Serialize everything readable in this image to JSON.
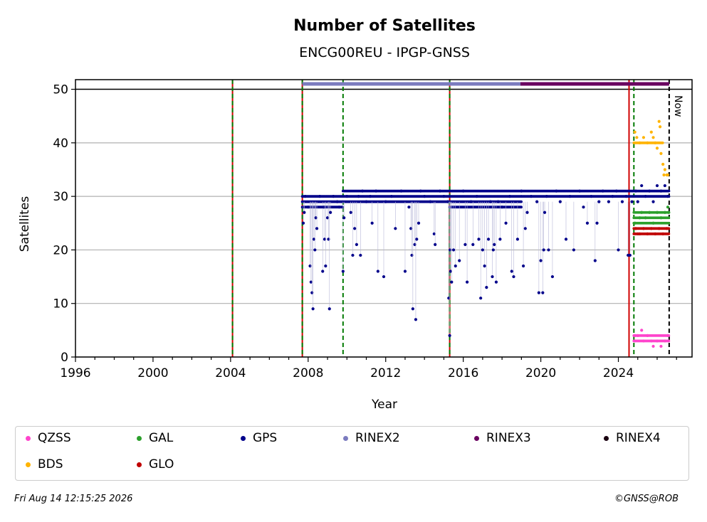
{
  "chart_data": {
    "type": "scatter",
    "title": "Number of Satellites",
    "subtitle": "ENCG00REU - IPGP-GNSS",
    "xlabel": "Year",
    "ylabel": "Satellites",
    "xlim": [
      1996,
      2027.8
    ],
    "ylim": [
      0,
      51.8
    ],
    "xticks": [
      1996,
      2000,
      2004,
      2008,
      2012,
      2016,
      2020,
      2024
    ],
    "yticks": [
      0,
      10,
      20,
      30,
      40,
      50
    ],
    "grid": "y",
    "now_label": "Now",
    "now_year": 2026.62,
    "vlines": [
      {
        "x": 2004.1,
        "style": "green-red-dotted"
      },
      {
        "x": 2007.7,
        "style": "green-red-dotted"
      },
      {
        "x": 2009.8,
        "style": "green-dashed"
      },
      {
        "x": 2015.3,
        "style": "green-red-dotted"
      },
      {
        "x": 2024.55,
        "style": "red-solid"
      },
      {
        "x": 2024.8,
        "style": "green-dashed"
      }
    ],
    "rinex_bars": [
      {
        "name": "RINEX2",
        "start": 2007.7,
        "end": 2018.95,
        "y": 51.0
      },
      {
        "name": "RINEX3",
        "start": 2018.95,
        "end": 2026.62,
        "y": 51.0
      }
    ],
    "series": [
      {
        "name": "GPS",
        "color": "#00008b",
        "points": [
          [
            2007.75,
            25
          ],
          [
            2007.8,
            27
          ],
          [
            2007.85,
            30
          ],
          [
            2008.0,
            28
          ],
          [
            2008.1,
            17
          ],
          [
            2008.15,
            14
          ],
          [
            2008.2,
            12
          ],
          [
            2008.25,
            9
          ],
          [
            2008.3,
            22
          ],
          [
            2008.35,
            20
          ],
          [
            2008.4,
            26
          ],
          [
            2008.45,
            24
          ],
          [
            2008.6,
            30
          ],
          [
            2008.75,
            16
          ],
          [
            2008.8,
            28
          ],
          [
            2008.85,
            22
          ],
          [
            2008.9,
            17
          ],
          [
            2009.0,
            26
          ],
          [
            2009.05,
            22
          ],
          [
            2009.1,
            9
          ],
          [
            2009.15,
            27
          ],
          [
            2009.3,
            30
          ],
          [
            2009.5,
            29
          ],
          [
            2009.6,
            28
          ],
          [
            2009.8,
            16
          ],
          [
            2009.85,
            26
          ],
          [
            2010.0,
            30
          ],
          [
            2010.2,
            27
          ],
          [
            2010.3,
            19
          ],
          [
            2010.4,
            24
          ],
          [
            2010.5,
            21
          ],
          [
            2010.6,
            30
          ],
          [
            2010.7,
            19
          ],
          [
            2010.8,
            31
          ],
          [
            2011.0,
            29
          ],
          [
            2011.2,
            30
          ],
          [
            2011.3,
            25
          ],
          [
            2011.5,
            31
          ],
          [
            2011.6,
            16
          ],
          [
            2011.9,
            15
          ],
          [
            2012.0,
            29
          ],
          [
            2012.3,
            30
          ],
          [
            2012.5,
            24
          ],
          [
            2012.8,
            31
          ],
          [
            2013.0,
            16
          ],
          [
            2013.2,
            28
          ],
          [
            2013.3,
            24
          ],
          [
            2013.35,
            19
          ],
          [
            2013.4,
            9
          ],
          [
            2013.5,
            21
          ],
          [
            2013.55,
            7
          ],
          [
            2013.6,
            22
          ],
          [
            2013.7,
            25
          ],
          [
            2013.8,
            31
          ],
          [
            2014.0,
            30
          ],
          [
            2014.3,
            29
          ],
          [
            2014.5,
            23
          ],
          [
            2014.55,
            21
          ],
          [
            2014.8,
            31
          ],
          [
            2015.0,
            30
          ],
          [
            2015.2,
            29
          ],
          [
            2015.25,
            11
          ],
          [
            2015.3,
            4
          ],
          [
            2015.32,
            20
          ],
          [
            2015.35,
            16
          ],
          [
            2015.4,
            14
          ],
          [
            2015.5,
            20
          ],
          [
            2015.6,
            17
          ],
          [
            2015.8,
            18
          ],
          [
            2016.0,
            31
          ],
          [
            2016.1,
            21
          ],
          [
            2016.2,
            14
          ],
          [
            2016.4,
            29
          ],
          [
            2016.5,
            21
          ],
          [
            2016.7,
            30
          ],
          [
            2016.8,
            22
          ],
          [
            2016.9,
            11
          ],
          [
            2017.0,
            20
          ],
          [
            2017.1,
            17
          ],
          [
            2017.2,
            13
          ],
          [
            2017.3,
            22
          ],
          [
            2017.4,
            29
          ],
          [
            2017.5,
            15
          ],
          [
            2017.55,
            20
          ],
          [
            2017.6,
            21
          ],
          [
            2017.7,
            14
          ],
          [
            2017.8,
            29
          ],
          [
            2017.9,
            22
          ],
          [
            2018.0,
            28
          ],
          [
            2018.2,
            25
          ],
          [
            2018.4,
            30
          ],
          [
            2018.5,
            16
          ],
          [
            2018.6,
            15
          ],
          [
            2018.8,
            22
          ],
          [
            2019.0,
            31
          ],
          [
            2019.1,
            17
          ],
          [
            2019.2,
            24
          ],
          [
            2019.3,
            27
          ],
          [
            2019.5,
            30
          ],
          [
            2019.8,
            29
          ],
          [
            2019.9,
            12
          ],
          [
            2020.0,
            18
          ],
          [
            2020.1,
            12
          ],
          [
            2020.15,
            20
          ],
          [
            2020.2,
            27
          ],
          [
            2020.3,
            30
          ],
          [
            2020.4,
            20
          ],
          [
            2020.6,
            15
          ],
          [
            2020.8,
            31
          ],
          [
            2021.0,
            29
          ],
          [
            2021.3,
            22
          ],
          [
            2021.5,
            30
          ],
          [
            2021.7,
            20
          ],
          [
            2022.0,
            31
          ],
          [
            2022.2,
            28
          ],
          [
            2022.4,
            25
          ],
          [
            2022.6,
            30
          ],
          [
            2022.8,
            18
          ],
          [
            2022.9,
            25
          ],
          [
            2023.0,
            29
          ],
          [
            2023.2,
            31
          ],
          [
            2023.5,
            29
          ],
          [
            2023.7,
            30
          ],
          [
            2023.9,
            31
          ],
          [
            2024.0,
            20
          ],
          [
            2024.2,
            29
          ],
          [
            2024.4,
            30
          ],
          [
            2024.5,
            19
          ],
          [
            2024.6,
            19
          ],
          [
            2024.7,
            29
          ],
          [
            2024.9,
            31
          ],
          [
            2025.0,
            29
          ],
          [
            2025.2,
            32
          ],
          [
            2025.4,
            30
          ],
          [
            2025.6,
            31
          ],
          [
            2025.8,
            29
          ],
          [
            2026.0,
            32
          ],
          [
            2026.2,
            31
          ],
          [
            2026.4,
            32
          ],
          [
            2026.55,
            30
          ]
        ],
        "bands": [
          [
            2007.7,
            2009.8,
            28,
            30
          ],
          [
            2009.8,
            2015.3,
            29,
            31
          ],
          [
            2015.3,
            2019.0,
            28,
            31
          ],
          [
            2019.0,
            2026.62,
            30,
            31
          ]
        ]
      },
      {
        "name": "GAL",
        "color": "#2ca02c",
        "points": [
          [
            2024.85,
            25
          ],
          [
            2025.0,
            23
          ],
          [
            2025.1,
            26
          ],
          [
            2025.2,
            27
          ],
          [
            2025.4,
            26
          ],
          [
            2025.6,
            27
          ],
          [
            2025.8,
            25
          ],
          [
            2026.0,
            27
          ],
          [
            2026.2,
            26
          ],
          [
            2026.4,
            27
          ],
          [
            2026.55,
            28
          ],
          [
            2026.6,
            27
          ]
        ],
        "bands": [
          [
            2024.8,
            2026.62,
            25,
            27
          ]
        ]
      },
      {
        "name": "GLO",
        "color": "#c00000",
        "points": [
          [
            2024.9,
            24
          ],
          [
            2025.1,
            23
          ],
          [
            2025.3,
            24
          ],
          [
            2025.5,
            23
          ],
          [
            2025.7,
            24
          ],
          [
            2025.9,
            23
          ],
          [
            2026.1,
            24
          ],
          [
            2026.3,
            23
          ],
          [
            2026.5,
            24
          ]
        ],
        "bands": [
          [
            2024.8,
            2026.62,
            23,
            24
          ]
        ]
      },
      {
        "name": "BDS",
        "color": "#ffb400",
        "points": [
          [
            2024.85,
            42
          ],
          [
            2024.95,
            41
          ],
          [
            2025.1,
            40
          ],
          [
            2025.3,
            41
          ],
          [
            2025.5,
            40
          ],
          [
            2025.7,
            42
          ],
          [
            2025.8,
            41
          ],
          [
            2025.9,
            40
          ],
          [
            2026.0,
            39
          ],
          [
            2026.1,
            44
          ],
          [
            2026.15,
            43
          ],
          [
            2026.2,
            38
          ],
          [
            2026.3,
            36
          ],
          [
            2026.35,
            34
          ],
          [
            2026.4,
            35
          ],
          [
            2026.5,
            34
          ],
          [
            2026.55,
            34
          ]
        ],
        "bands": [
          [
            2024.8,
            2026.3,
            40,
            40
          ]
        ]
      },
      {
        "name": "QZSS",
        "color": "#ff44cc",
        "points": [
          [
            2024.85,
            4
          ],
          [
            2025.0,
            4
          ],
          [
            2025.2,
            5
          ],
          [
            2025.3,
            3
          ],
          [
            2025.5,
            4
          ],
          [
            2025.7,
            3
          ],
          [
            2025.8,
            2
          ],
          [
            2026.0,
            3
          ],
          [
            2026.2,
            2
          ],
          [
            2026.4,
            3
          ],
          [
            2026.55,
            4
          ]
        ],
        "bands": [
          [
            2024.8,
            2026.62,
            3,
            4
          ]
        ]
      }
    ],
    "legend": {
      "placement": "below",
      "entries": [
        {
          "label": "QZSS",
          "color": "#ff44cc"
        },
        {
          "label": "GAL",
          "color": "#2ca02c"
        },
        {
          "label": "GPS",
          "color": "#00008b"
        },
        {
          "label": "RINEX2",
          "color": "#7b7bbf"
        },
        {
          "label": "RINEX3",
          "color": "#6a0060"
        },
        {
          "label": "RINEX4",
          "color": "#1a0010"
        },
        {
          "label": "BDS",
          "color": "#ffb400"
        },
        {
          "label": "GLO",
          "color": "#c00000"
        }
      ]
    }
  },
  "footer": {
    "timestamp": "Fri Aug 14 12:15:25 2026",
    "credit": "©GNSS@ROB"
  }
}
